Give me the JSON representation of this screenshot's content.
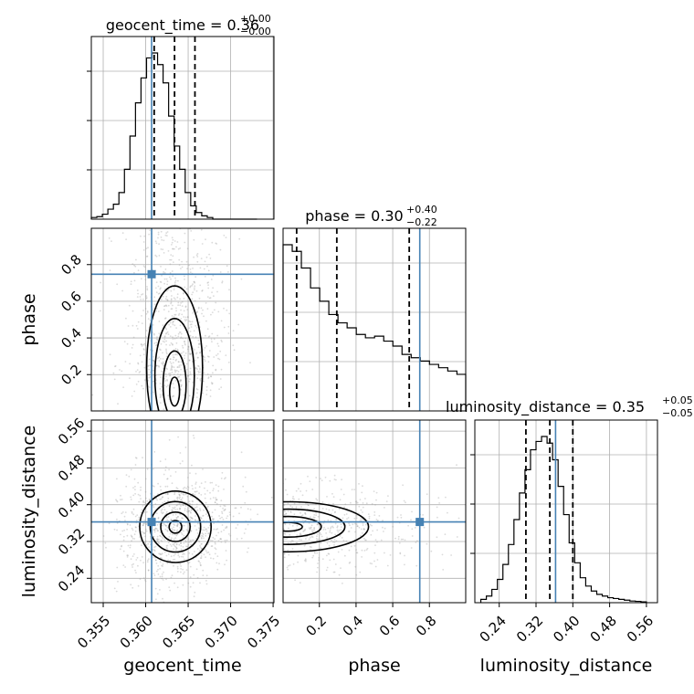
{
  "chart_data": {
    "type": "corner",
    "parameters": [
      "geocent_time",
      "phase",
      "luminosity_distance"
    ],
    "ranges": {
      "geocent_time": [
        0.3536,
        0.3751
      ],
      "phase": [
        0.002,
        0.998
      ],
      "luminosity_distance": [
        0.187,
        0.584
      ]
    },
    "truths": {
      "geocent_time": 0.3607,
      "phase": 0.7475,
      "luminosity_distance": 0.3625
    },
    "titles": {
      "geocent_time": {
        "label": "geocent_time = 0.36",
        "plus": "+0.00",
        "minus": "−0.00"
      },
      "phase": {
        "label": "phase = 0.30",
        "plus": "+0.40",
        "minus": "−0.22"
      },
      "luminosity_distance": {
        "label": "luminosity_distance = 0.35",
        "plus": "+0.05",
        "minus": "−0.05"
      }
    },
    "quantiles": {
      "geocent_time": [
        0.361,
        0.3634,
        0.3658
      ],
      "phase": [
        0.076,
        0.295,
        0.69
      ],
      "luminosity_distance": [
        0.298,
        0.35,
        0.4
      ]
    },
    "ticks": {
      "geocent_time": [
        "0.355",
        "0.360",
        "0.365",
        "0.370",
        "0.375"
      ],
      "phase": [
        "0.2",
        "0.4",
        "0.6",
        "0.8"
      ],
      "luminosity_distance": [
        "0.24",
        "0.32",
        "0.40",
        "0.48",
        "0.56"
      ]
    },
    "hist_geocent_time": {
      "bin_edges": [
        0.3536,
        0.35425,
        0.3549,
        0.35555,
        0.3562,
        0.35685,
        0.3575,
        0.35815,
        0.3588,
        0.35945,
        0.3601,
        0.36075,
        0.3614,
        0.36205,
        0.3627,
        0.36335,
        0.364,
        0.36465,
        0.3653,
        0.36595,
        0.3666,
        0.36725,
        0.3679,
        0.36855,
        0.3692,
        0.36985,
        0.3705,
        0.37115,
        0.3718,
        0.37245,
        0.3731
      ],
      "counts": [
        0.01,
        0.015,
        0.03,
        0.06,
        0.09,
        0.16,
        0.3,
        0.5,
        0.7,
        0.85,
        0.97,
        1.0,
        0.93,
        0.82,
        0.62,
        0.44,
        0.3,
        0.16,
        0.08,
        0.04,
        0.02,
        0.01,
        0,
        0,
        0,
        0,
        0,
        0,
        0,
        0
      ]
    },
    "hist_phase": {
      "bin_edges": [
        0.002,
        0.0519,
        0.1018,
        0.1517,
        0.2016,
        0.2515,
        0.3014,
        0.3513,
        0.4012,
        0.4511,
        0.501,
        0.5509,
        0.6008,
        0.6507,
        0.7006,
        0.7505,
        0.8004,
        0.8503,
        0.9002,
        0.9501,
        0.998
      ],
      "counts": [
        1.0,
        0.96,
        0.86,
        0.74,
        0.66,
        0.58,
        0.53,
        0.5,
        0.46,
        0.44,
        0.45,
        0.42,
        0.39,
        0.34,
        0.32,
        0.3,
        0.28,
        0.26,
        0.24,
        0.22
      ]
    },
    "hist_luminosity_distance": {
      "bin_edges": [
        0.2,
        0.212,
        0.224,
        0.236,
        0.248,
        0.26,
        0.272,
        0.284,
        0.296,
        0.308,
        0.32,
        0.332,
        0.344,
        0.356,
        0.368,
        0.38,
        0.392,
        0.404,
        0.416,
        0.428,
        0.44,
        0.452,
        0.464,
        0.476,
        0.488,
        0.5,
        0.512,
        0.524,
        0.536,
        0.548,
        0.56
      ],
      "counts": [
        0.02,
        0.04,
        0.08,
        0.14,
        0.23,
        0.35,
        0.5,
        0.66,
        0.8,
        0.92,
        0.97,
        1.0,
        0.96,
        0.86,
        0.7,
        0.53,
        0.36,
        0.24,
        0.15,
        0.1,
        0.07,
        0.05,
        0.04,
        0.03,
        0.025,
        0.02,
        0.015,
        0.01,
        0.008,
        0.005
      ]
    },
    "density_peaks": {
      "phase_vs_geocent_time": {
        "x": 0.3634,
        "y": 0.08
      },
      "luminosity_distance_vs_geocent_time": {
        "x": 0.3635,
        "y": 0.352
      },
      "luminosity_distance_vs_phase": {
        "x": 0.03,
        "y": 0.352
      }
    },
    "grid": true,
    "truth_color": "#4682b4"
  }
}
